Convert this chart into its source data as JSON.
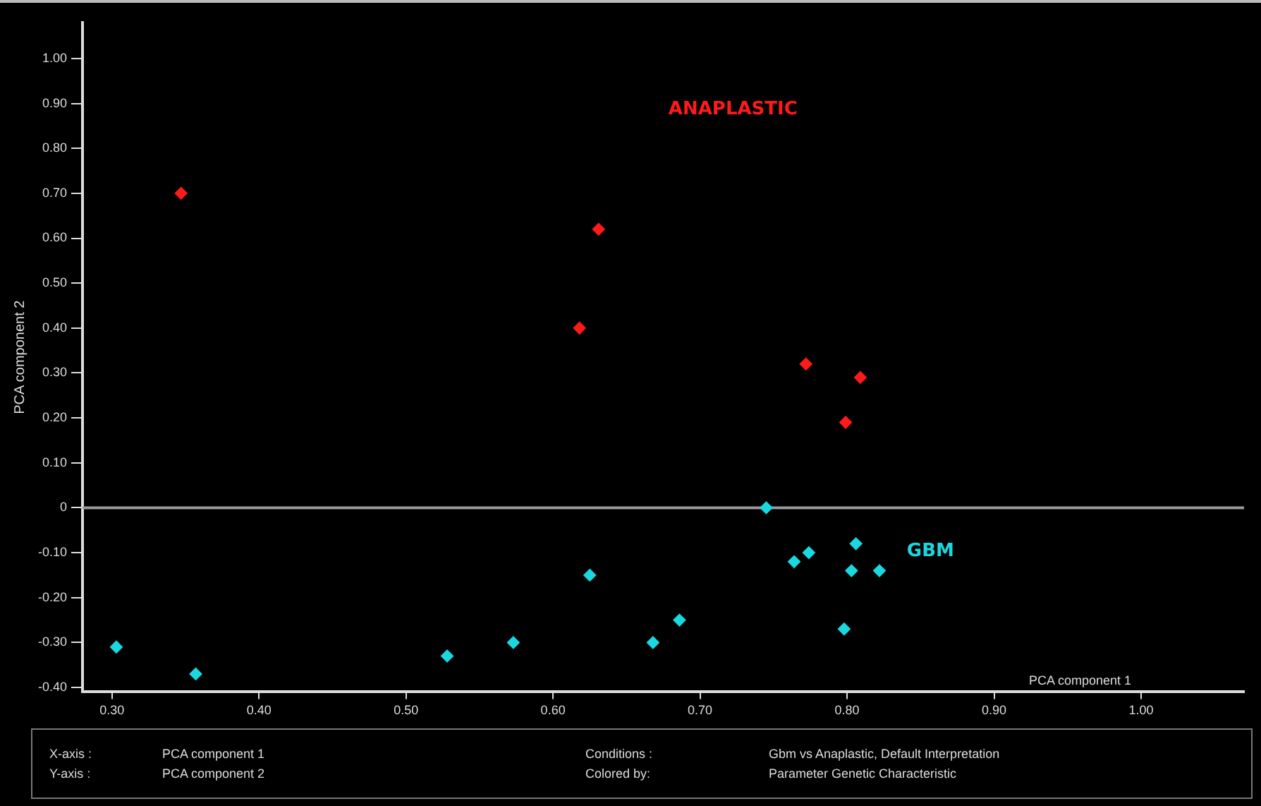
{
  "chart_data": {
    "type": "scatter",
    "xlabel": "PCA component 1",
    "ylabel": "PCA component 2",
    "xlim": [
      0.28,
      1.07
    ],
    "ylim": [
      -0.41,
      1.08
    ],
    "xticks": [
      {
        "value": 0.3,
        "label": "0.30"
      },
      {
        "value": 0.4,
        "label": "0.40"
      },
      {
        "value": 0.5,
        "label": "0.50"
      },
      {
        "value": 0.6,
        "label": "0.60"
      },
      {
        "value": 0.7,
        "label": "0.70"
      },
      {
        "value": 0.8,
        "label": "0.80"
      },
      {
        "value": 0.9,
        "label": "0.90"
      },
      {
        "value": 1.0,
        "label": "1.00"
      }
    ],
    "yticks": [
      {
        "value": -0.4,
        "label": "-0.40"
      },
      {
        "value": -0.3,
        "label": "-0.30"
      },
      {
        "value": -0.2,
        "label": "-0.20"
      },
      {
        "value": -0.1,
        "label": "-0.10"
      },
      0,
      {
        "value": 0.1,
        "label": "0.10"
      },
      {
        "value": 0.2,
        "label": "0.20"
      },
      {
        "value": 0.3,
        "label": "0.30"
      },
      {
        "value": 0.4,
        "label": "0.40"
      },
      {
        "value": 0.5,
        "label": "0.50"
      },
      {
        "value": 0.6,
        "label": "0.60"
      },
      {
        "value": 0.7,
        "label": "0.70"
      },
      {
        "value": 0.8,
        "label": "0.80"
      },
      {
        "value": 0.9,
        "label": "0.90"
      },
      {
        "value": 1.0,
        "label": "1.00"
      }
    ],
    "series": [
      {
        "name": "ANAPLASTIC",
        "color": "#ff1a1a",
        "x": [
          0.347,
          0.631,
          0.618,
          0.772,
          0.809,
          0.799
        ],
        "values": [
          0.7,
          0.62,
          0.4,
          0.32,
          0.29,
          0.19
        ]
      },
      {
        "name": "GBM",
        "color": "#1ad8e0",
        "x": [
          0.303,
          0.357,
          0.528,
          0.573,
          0.625,
          0.668,
          0.686,
          0.745,
          0.764,
          0.774,
          0.806,
          0.803,
          0.822,
          0.798
        ],
        "values": [
          -0.31,
          -0.37,
          -0.33,
          -0.3,
          -0.15,
          -0.3,
          -0.25,
          0.0,
          -0.12,
          -0.1,
          -0.08,
          -0.14,
          -0.14,
          -0.27
        ]
      }
    ],
    "ref_lines": [
      {
        "axis": "y",
        "value": 0,
        "color": "#9a9a9a"
      }
    ],
    "marker": "diamond",
    "grid": false,
    "legend": false,
    "annotations": [
      "X-axis :",
      "PCA component 1",
      "Y-axis :",
      "PCA component 2",
      "Conditions :",
      "Gbm vs Anaplastic, Default Interpretation",
      "Colored by:",
      "Parameter Genetic Characteristic"
    ]
  }
}
